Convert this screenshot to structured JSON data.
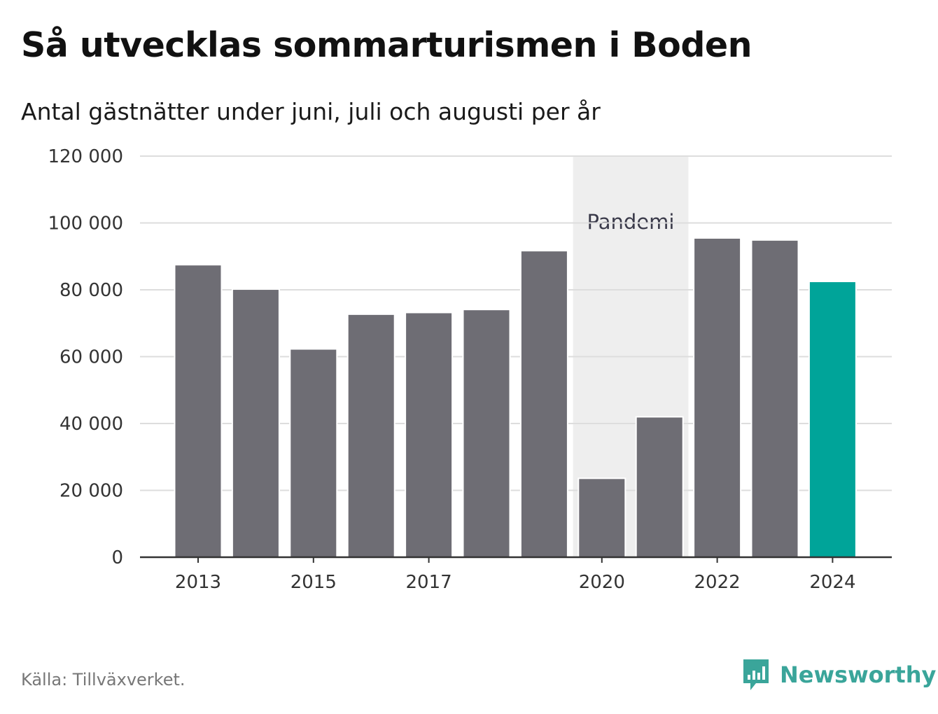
{
  "title": "Så utvecklas sommarturismen i Boden",
  "subtitle": "Antal gästnätter under juni, juli och augusti per år",
  "source": "Källa: Tillväxverket.",
  "brand": {
    "name": "Newsworthy",
    "icon": "newsworthy-logo-icon"
  },
  "colors": {
    "bar": "#6e6d74",
    "highlight": "#00a499",
    "band": "#eeeeee",
    "grid": "#dddddd",
    "axis": "#333333",
    "brand": "#3aa59a"
  },
  "chart_data": {
    "type": "bar",
    "categories": [
      2013,
      2014,
      2015,
      2016,
      2017,
      2018,
      2019,
      2020,
      2021,
      2022,
      2023,
      2024
    ],
    "values": [
      87500,
      80200,
      62300,
      72700,
      73200,
      74100,
      91700,
      23600,
      42000,
      95500,
      94900,
      82500
    ],
    "highlight_category": 2024,
    "x_tick_labels": [
      "2013",
      "2015",
      "2017",
      "2020",
      "2022",
      "2024"
    ],
    "y_ticks": [
      0,
      20000,
      40000,
      60000,
      80000,
      100000,
      120000
    ],
    "y_tick_labels": [
      "0",
      "20 000",
      "40 000",
      "60 000",
      "80 000",
      "100 000",
      "120 000"
    ],
    "ylim": [
      0,
      120000
    ],
    "grid": true,
    "annotation": {
      "label": "Pandemi",
      "from": 2020,
      "to": 2021
    }
  }
}
